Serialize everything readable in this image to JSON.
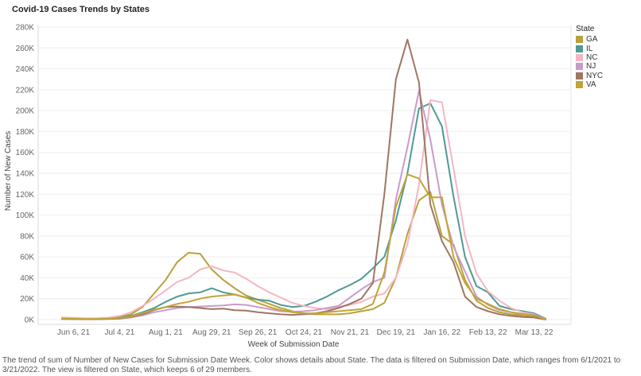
{
  "caption": "The trend of sum of Number of New Cases for Submission Date Week.  Color shows details about State. The data is filtered on Submission Date, which ranges from 6/1/2021 to 3/21/2022. The view is filtered on State, which keeps 6 of 29 members.",
  "chart_data": {
    "type": "line",
    "title": "Covid-19 Cases Trends by States",
    "xlabel": "Week of Submission Date",
    "ylabel": "Number of New Cases",
    "ylim": [
      0,
      280000
    ],
    "yticks": [
      0,
      20000,
      40000,
      60000,
      80000,
      100000,
      120000,
      140000,
      160000,
      180000,
      200000,
      220000,
      240000,
      260000,
      280000
    ],
    "ytick_labels": [
      "0K",
      "20K",
      "40K",
      "60K",
      "80K",
      "100K",
      "120K",
      "140K",
      "160K",
      "180K",
      "200K",
      "220K",
      "240K",
      "260K",
      "280K"
    ],
    "xtick_labels": [
      "Jun 6, 21",
      "Jul 4, 21",
      "Aug 1, 21",
      "Aug 29, 21",
      "Sep 26, 21",
      "Oct 24, 21",
      "Nov 21, 21",
      "Dec 19, 21",
      "Jan 16, 22",
      "Feb 13, 22",
      "Mar 13, 22"
    ],
    "x": [
      "May 30, 21",
      "Jun 6, 21",
      "Jun 13, 21",
      "Jun 20, 21",
      "Jun 27, 21",
      "Jul 4, 21",
      "Jul 11, 21",
      "Jul 18, 21",
      "Jul 25, 21",
      "Aug 1, 21",
      "Aug 8, 21",
      "Aug 15, 21",
      "Aug 22, 21",
      "Aug 29, 21",
      "Sep 5, 21",
      "Sep 12, 21",
      "Sep 19, 21",
      "Sep 26, 21",
      "Oct 3, 21",
      "Oct 10, 21",
      "Oct 17, 21",
      "Oct 24, 21",
      "Oct 31, 21",
      "Nov 7, 21",
      "Nov 14, 21",
      "Nov 21, 21",
      "Nov 28, 21",
      "Dec 5, 21",
      "Dec 12, 21",
      "Dec 19, 21",
      "Dec 26, 21",
      "Jan 2, 22",
      "Jan 9, 22",
      "Jan 16, 22",
      "Jan 23, 22",
      "Jan 30, 22",
      "Feb 6, 22",
      "Feb 13, 22",
      "Feb 20, 22",
      "Feb 27, 22",
      "Mar 6, 22",
      "Mar 13, 22",
      "Mar 20, 22"
    ],
    "legend_title": "State",
    "legend_position": "right",
    "grid": "horizontal",
    "series": [
      {
        "name": "GA",
        "color": "#b9a23a",
        "values": [
          2000,
          1500,
          1000,
          1000,
          1500,
          2500,
          5000,
          12000,
          25000,
          38000,
          55000,
          64000,
          63000,
          48000,
          38000,
          30000,
          23000,
          19000,
          15000,
          11000,
          8000,
          6000,
          5000,
          5000,
          5000,
          6000,
          8000,
          10000,
          16000,
          40000,
          82000,
          114000,
          122000,
          80000,
          72000,
          38000,
          18000,
          11000,
          7000,
          5000,
          4000,
          3000,
          0
        ]
      },
      {
        "name": "IL",
        "color": "#4f9a94",
        "values": [
          1000,
          800,
          700,
          700,
          1000,
          2000,
          3500,
          7000,
          11000,
          17000,
          22000,
          25000,
          26000,
          30000,
          26000,
          24000,
          21000,
          19000,
          18000,
          14000,
          12000,
          13000,
          17000,
          22000,
          28000,
          33000,
          39000,
          49000,
          60000,
          95000,
          140000,
          202000,
          207000,
          185000,
          118000,
          60000,
          32000,
          26000,
          13000,
          10000,
          8000,
          6000,
          1000
        ]
      },
      {
        "name": "NC",
        "color": "#f4b6c2",
        "values": [
          2000,
          1500,
          1200,
          1200,
          1800,
          3500,
          7000,
          13000,
          20000,
          28000,
          36000,
          40000,
          48000,
          51000,
          47000,
          45000,
          39000,
          32000,
          26000,
          21000,
          16000,
          13000,
          11000,
          10000,
          12000,
          14000,
          17000,
          22000,
          25000,
          40000,
          72000,
          129000,
          210000,
          208000,
          145000,
          80000,
          44000,
          27000,
          18000,
          11000,
          7000,
          5000,
          0
        ]
      },
      {
        "name": "NJ",
        "color": "#c99bc9",
        "values": [
          500,
          400,
          400,
          400,
          600,
          1000,
          2000,
          4000,
          7000,
          9000,
          11000,
          12000,
          12500,
          13000,
          13500,
          14500,
          14000,
          12000,
          10000,
          8000,
          7500,
          8000,
          9000,
          11000,
          13000,
          21000,
          29000,
          36000,
          40000,
          115000,
          165000,
          219000,
          172000,
          110000,
          70000,
          46000,
          22000,
          14000,
          9000,
          7000,
          5500,
          4500,
          1000
        ]
      },
      {
        "name": "NYC",
        "color": "#9e7662",
        "values": [
          500,
          400,
          300,
          300,
          500,
          1000,
          2500,
          5000,
          9000,
          12000,
          12500,
          12000,
          11000,
          10000,
          10500,
          9000,
          8500,
          7000,
          6000,
          5000,
          4500,
          5000,
          6000,
          8000,
          11000,
          15000,
          20000,
          35000,
          120000,
          230000,
          268000,
          227000,
          110000,
          75000,
          55000,
          22000,
          12000,
          8000,
          5000,
          3500,
          2500,
          2000,
          0
        ]
      },
      {
        "name": "VA",
        "color": "#c2a435",
        "values": [
          1000,
          800,
          600,
          600,
          900,
          1500,
          3000,
          6000,
          9500,
          12000,
          15000,
          17000,
          20000,
          22000,
          23000,
          24000,
          21000,
          16000,
          12000,
          9000,
          7000,
          6000,
          6000,
          7000,
          8000,
          9000,
          10000,
          15000,
          45000,
          108000,
          139000,
          135000,
          117000,
          117000,
          60000,
          35000,
          20000,
          15000,
          10000,
          7000,
          5000,
          4000,
          0
        ]
      }
    ]
  }
}
